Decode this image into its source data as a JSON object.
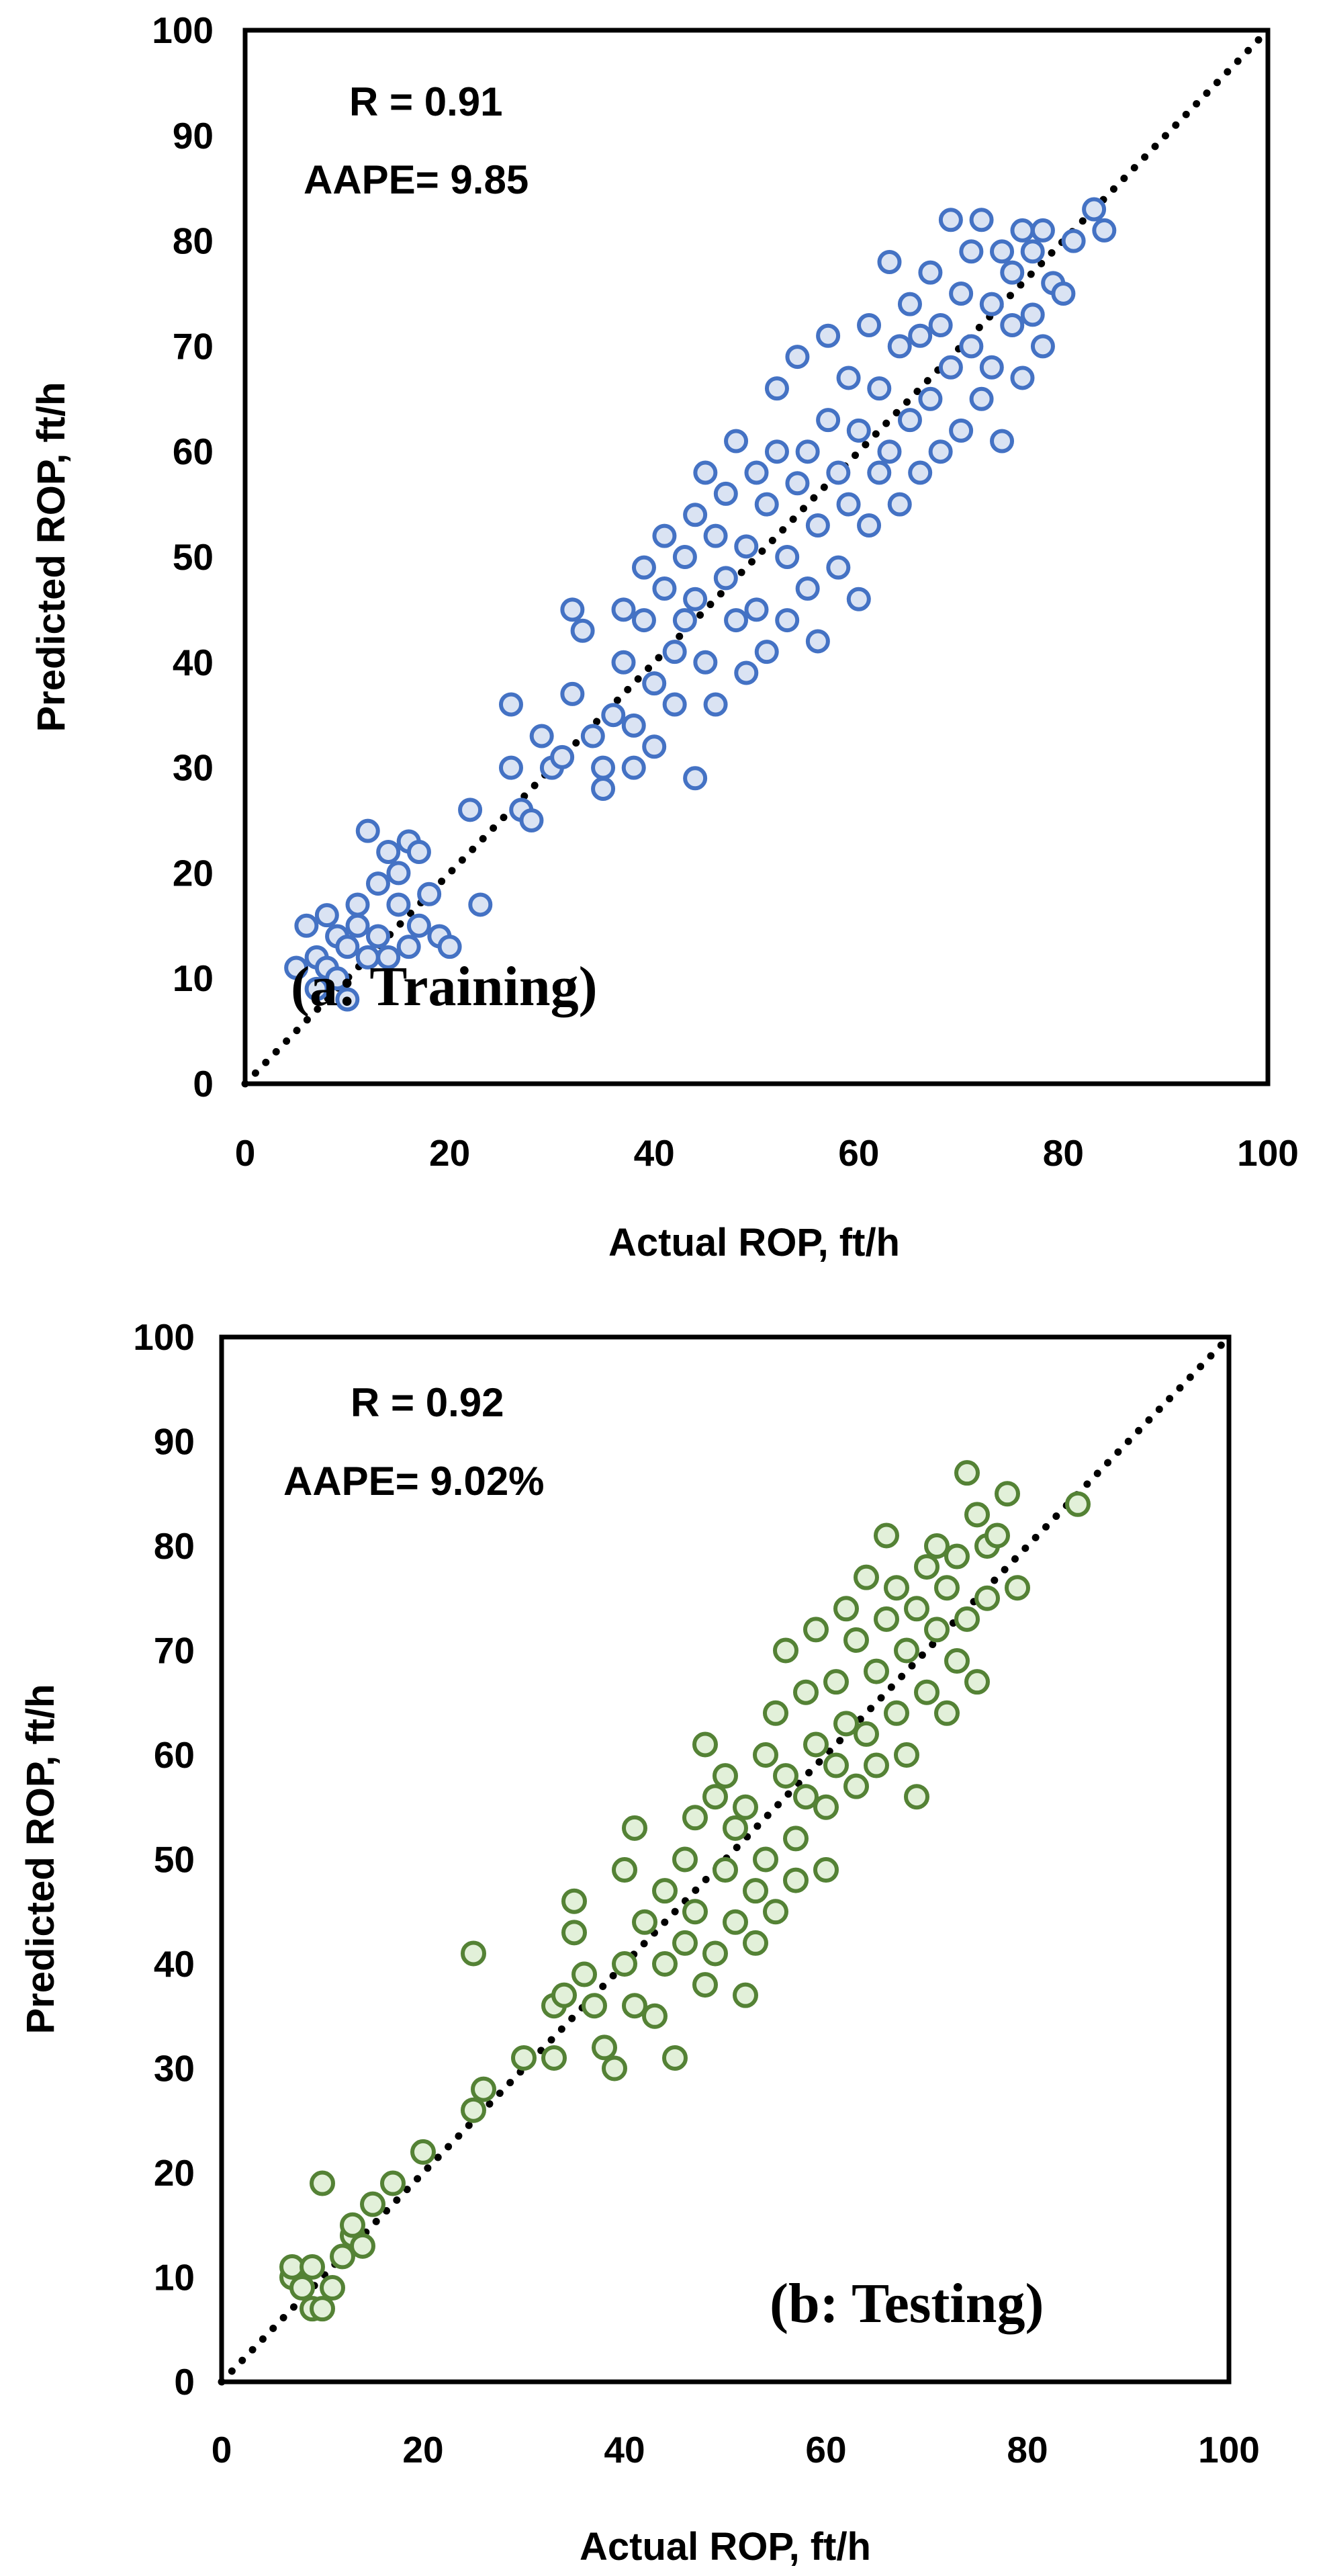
{
  "chart_data": [
    {
      "type": "scatter",
      "panel_label": "(a: Training)",
      "xlabel": "Actual ROP, ft/h",
      "ylabel": "Predicted  ROP, ft/h",
      "xlim": [
        0,
        100
      ],
      "ylim": [
        0,
        100
      ],
      "xticks": [
        "0",
        "20",
        "40",
        "60",
        "80",
        "100"
      ],
      "yticks": [
        "0",
        "10",
        "20",
        "30",
        "40",
        "50",
        "60",
        "70",
        "80",
        "90",
        "100"
      ],
      "annotations": {
        "r_text": "R = 0.91",
        "aape_text": "AAPE= 9.85"
      },
      "reference_line": {
        "style": "dotted",
        "from": [
          0,
          0
        ],
        "to": [
          100,
          100
        ]
      },
      "marker": {
        "edge_color": "#4472C4",
        "fill_color": "#DAE3F3"
      },
      "series": [
        {
          "name": "Training",
          "points": [
            [
              5,
              11
            ],
            [
              6,
              15
            ],
            [
              7,
              9
            ],
            [
              7,
              12
            ],
            [
              8,
              16
            ],
            [
              8,
              11
            ],
            [
              9,
              14
            ],
            [
              9,
              10
            ],
            [
              10,
              8
            ],
            [
              10,
              13
            ],
            [
              11,
              15
            ],
            [
              11,
              17
            ],
            [
              12,
              24
            ],
            [
              12,
              12
            ],
            [
              13,
              19
            ],
            [
              13,
              14
            ],
            [
              14,
              22
            ],
            [
              14,
              12
            ],
            [
              15,
              17
            ],
            [
              15,
              20
            ],
            [
              16,
              13
            ],
            [
              16,
              23
            ],
            [
              17,
              22
            ],
            [
              17,
              15
            ],
            [
              18,
              18
            ],
            [
              19,
              14
            ],
            [
              20,
              13
            ],
            [
              22,
              26
            ],
            [
              23,
              17
            ],
            [
              26,
              36
            ],
            [
              26,
              30
            ],
            [
              27,
              26
            ],
            [
              28,
              25
            ],
            [
              29,
              33
            ],
            [
              30,
              30
            ],
            [
              31,
              31
            ],
            [
              32,
              45
            ],
            [
              32,
              37
            ],
            [
              33,
              43
            ],
            [
              34,
              33
            ],
            [
              35,
              28
            ],
            [
              35,
              30
            ],
            [
              36,
              35
            ],
            [
              37,
              40
            ],
            [
              37,
              45
            ],
            [
              38,
              30
            ],
            [
              38,
              34
            ],
            [
              39,
              49
            ],
            [
              39,
              44
            ],
            [
              40,
              32
            ],
            [
              40,
              38
            ],
            [
              41,
              47
            ],
            [
              41,
              52
            ],
            [
              42,
              41
            ],
            [
              42,
              36
            ],
            [
              43,
              50
            ],
            [
              43,
              44
            ],
            [
              44,
              54
            ],
            [
              44,
              46
            ],
            [
              44,
              29
            ],
            [
              45,
              58
            ],
            [
              45,
              40
            ],
            [
              46,
              52
            ],
            [
              46,
              36
            ],
            [
              47,
              56
            ],
            [
              47,
              48
            ],
            [
              48,
              44
            ],
            [
              48,
              61
            ],
            [
              49,
              51
            ],
            [
              49,
              39
            ],
            [
              50,
              58
            ],
            [
              50,
              45
            ],
            [
              51,
              55
            ],
            [
              51,
              41
            ],
            [
              52,
              66
            ],
            [
              52,
              60
            ],
            [
              53,
              50
            ],
            [
              53,
              44
            ],
            [
              54,
              69
            ],
            [
              54,
              57
            ],
            [
              55,
              47
            ],
            [
              55,
              60
            ],
            [
              56,
              53
            ],
            [
              56,
              42
            ],
            [
              57,
              71
            ],
            [
              57,
              63
            ],
            [
              58,
              58
            ],
            [
              58,
              49
            ],
            [
              59,
              67
            ],
            [
              59,
              55
            ],
            [
              60,
              46
            ],
            [
              60,
              62
            ],
            [
              61,
              72
            ],
            [
              61,
              53
            ],
            [
              62,
              66
            ],
            [
              62,
              58
            ],
            [
              63,
              78
            ],
            [
              63,
              60
            ],
            [
              64,
              55
            ],
            [
              64,
              70
            ],
            [
              65,
              74
            ],
            [
              65,
              63
            ],
            [
              66,
              58
            ],
            [
              66,
              71
            ],
            [
              67,
              77
            ],
            [
              67,
              65
            ],
            [
              68,
              60
            ],
            [
              68,
              72
            ],
            [
              69,
              82
            ],
            [
              69,
              68
            ],
            [
              70,
              75
            ],
            [
              70,
              62
            ],
            [
              71,
              70
            ],
            [
              71,
              79
            ],
            [
              72,
              65
            ],
            [
              72,
              82
            ],
            [
              73,
              74
            ],
            [
              73,
              68
            ],
            [
              74,
              79
            ],
            [
              74,
              61
            ],
            [
              75,
              72
            ],
            [
              75,
              77
            ],
            [
              76,
              81
            ],
            [
              76,
              67
            ],
            [
              77,
              73
            ],
            [
              77,
              79
            ],
            [
              78,
              70
            ],
            [
              78,
              81
            ],
            [
              79,
              76
            ],
            [
              80,
              75
            ],
            [
              81,
              80
            ],
            [
              83,
              83
            ],
            [
              84,
              81
            ]
          ]
        }
      ]
    },
    {
      "type": "scatter",
      "panel_label": "(b: Testing)",
      "xlabel": "Actual ROP, ft/h",
      "ylabel": "Predicted ROP, ft/h",
      "xlim": [
        0,
        100
      ],
      "ylim": [
        0,
        100
      ],
      "xticks": [
        "0",
        "20",
        "40",
        "60",
        "80",
        "100"
      ],
      "yticks": [
        "0",
        "10",
        "20",
        "30",
        "40",
        "50",
        "60",
        "70",
        "80",
        "90",
        "100"
      ],
      "annotations": {
        "r_text": "R = 0.92",
        "aape_text": "AAPE= 9.02%"
      },
      "reference_line": {
        "style": "dotted",
        "from": [
          0,
          0
        ],
        "to": [
          100,
          100
        ]
      },
      "marker": {
        "edge_color": "#548235",
        "fill_color": "#E2F0D9"
      },
      "series": [
        {
          "name": "Testing",
          "points": [
            [
              7,
              10
            ],
            [
              7,
              11
            ],
            [
              8,
              9
            ],
            [
              9,
              7
            ],
            [
              9,
              11
            ],
            [
              10,
              7
            ],
            [
              10,
              19
            ],
            [
              11,
              9
            ],
            [
              12,
              12
            ],
            [
              13,
              14
            ],
            [
              13,
              15
            ],
            [
              14,
              13
            ],
            [
              15,
              17
            ],
            [
              17,
              19
            ],
            [
              20,
              22
            ],
            [
              25,
              41
            ],
            [
              25,
              26
            ],
            [
              26,
              28
            ],
            [
              30,
              31
            ],
            [
              33,
              31
            ],
            [
              33,
              36
            ],
            [
              34,
              37
            ],
            [
              35,
              46
            ],
            [
              35,
              43
            ],
            [
              36,
              39
            ],
            [
              37,
              36
            ],
            [
              38,
              32
            ],
            [
              39,
              30
            ],
            [
              40,
              40
            ],
            [
              40,
              49
            ],
            [
              41,
              53
            ],
            [
              41,
              36
            ],
            [
              42,
              44
            ],
            [
              43,
              35
            ],
            [
              44,
              47
            ],
            [
              44,
              40
            ],
            [
              45,
              31
            ],
            [
              46,
              50
            ],
            [
              46,
              42
            ],
            [
              47,
              54
            ],
            [
              47,
              45
            ],
            [
              48,
              61
            ],
            [
              48,
              38
            ],
            [
              49,
              56
            ],
            [
              49,
              41
            ],
            [
              50,
              58
            ],
            [
              50,
              49
            ],
            [
              51,
              53
            ],
            [
              51,
              44
            ],
            [
              52,
              37
            ],
            [
              52,
              55
            ],
            [
              53,
              47
            ],
            [
              53,
              42
            ],
            [
              54,
              60
            ],
            [
              54,
              50
            ],
            [
              55,
              64
            ],
            [
              55,
              45
            ],
            [
              56,
              58
            ],
            [
              56,
              70
            ],
            [
              57,
              52
            ],
            [
              57,
              48
            ],
            [
              58,
              66
            ],
            [
              58,
              56
            ],
            [
              59,
              61
            ],
            [
              59,
              72
            ],
            [
              60,
              55
            ],
            [
              60,
              49
            ],
            [
              61,
              67
            ],
            [
              61,
              59
            ],
            [
              62,
              63
            ],
            [
              62,
              74
            ],
            [
              63,
              57
            ],
            [
              63,
              71
            ],
            [
              64,
              77
            ],
            [
              64,
              62
            ],
            [
              65,
              68
            ],
            [
              65,
              59
            ],
            [
              66,
              81
            ],
            [
              66,
              73
            ],
            [
              67,
              64
            ],
            [
              67,
              76
            ],
            [
              68,
              70
            ],
            [
              68,
              60
            ],
            [
              69,
              74
            ],
            [
              69,
              56
            ],
            [
              70,
              78
            ],
            [
              70,
              66
            ],
            [
              71,
              72
            ],
            [
              71,
              80
            ],
            [
              72,
              64
            ],
            [
              72,
              76
            ],
            [
              73,
              69
            ],
            [
              73,
              79
            ],
            [
              74,
              87
            ],
            [
              74,
              73
            ],
            [
              75,
              83
            ],
            [
              75,
              67
            ],
            [
              76,
              80
            ],
            [
              76,
              75
            ],
            [
              77,
              81
            ],
            [
              78,
              85
            ],
            [
              79,
              76
            ],
            [
              85,
              84
            ]
          ]
        }
      ]
    }
  ]
}
